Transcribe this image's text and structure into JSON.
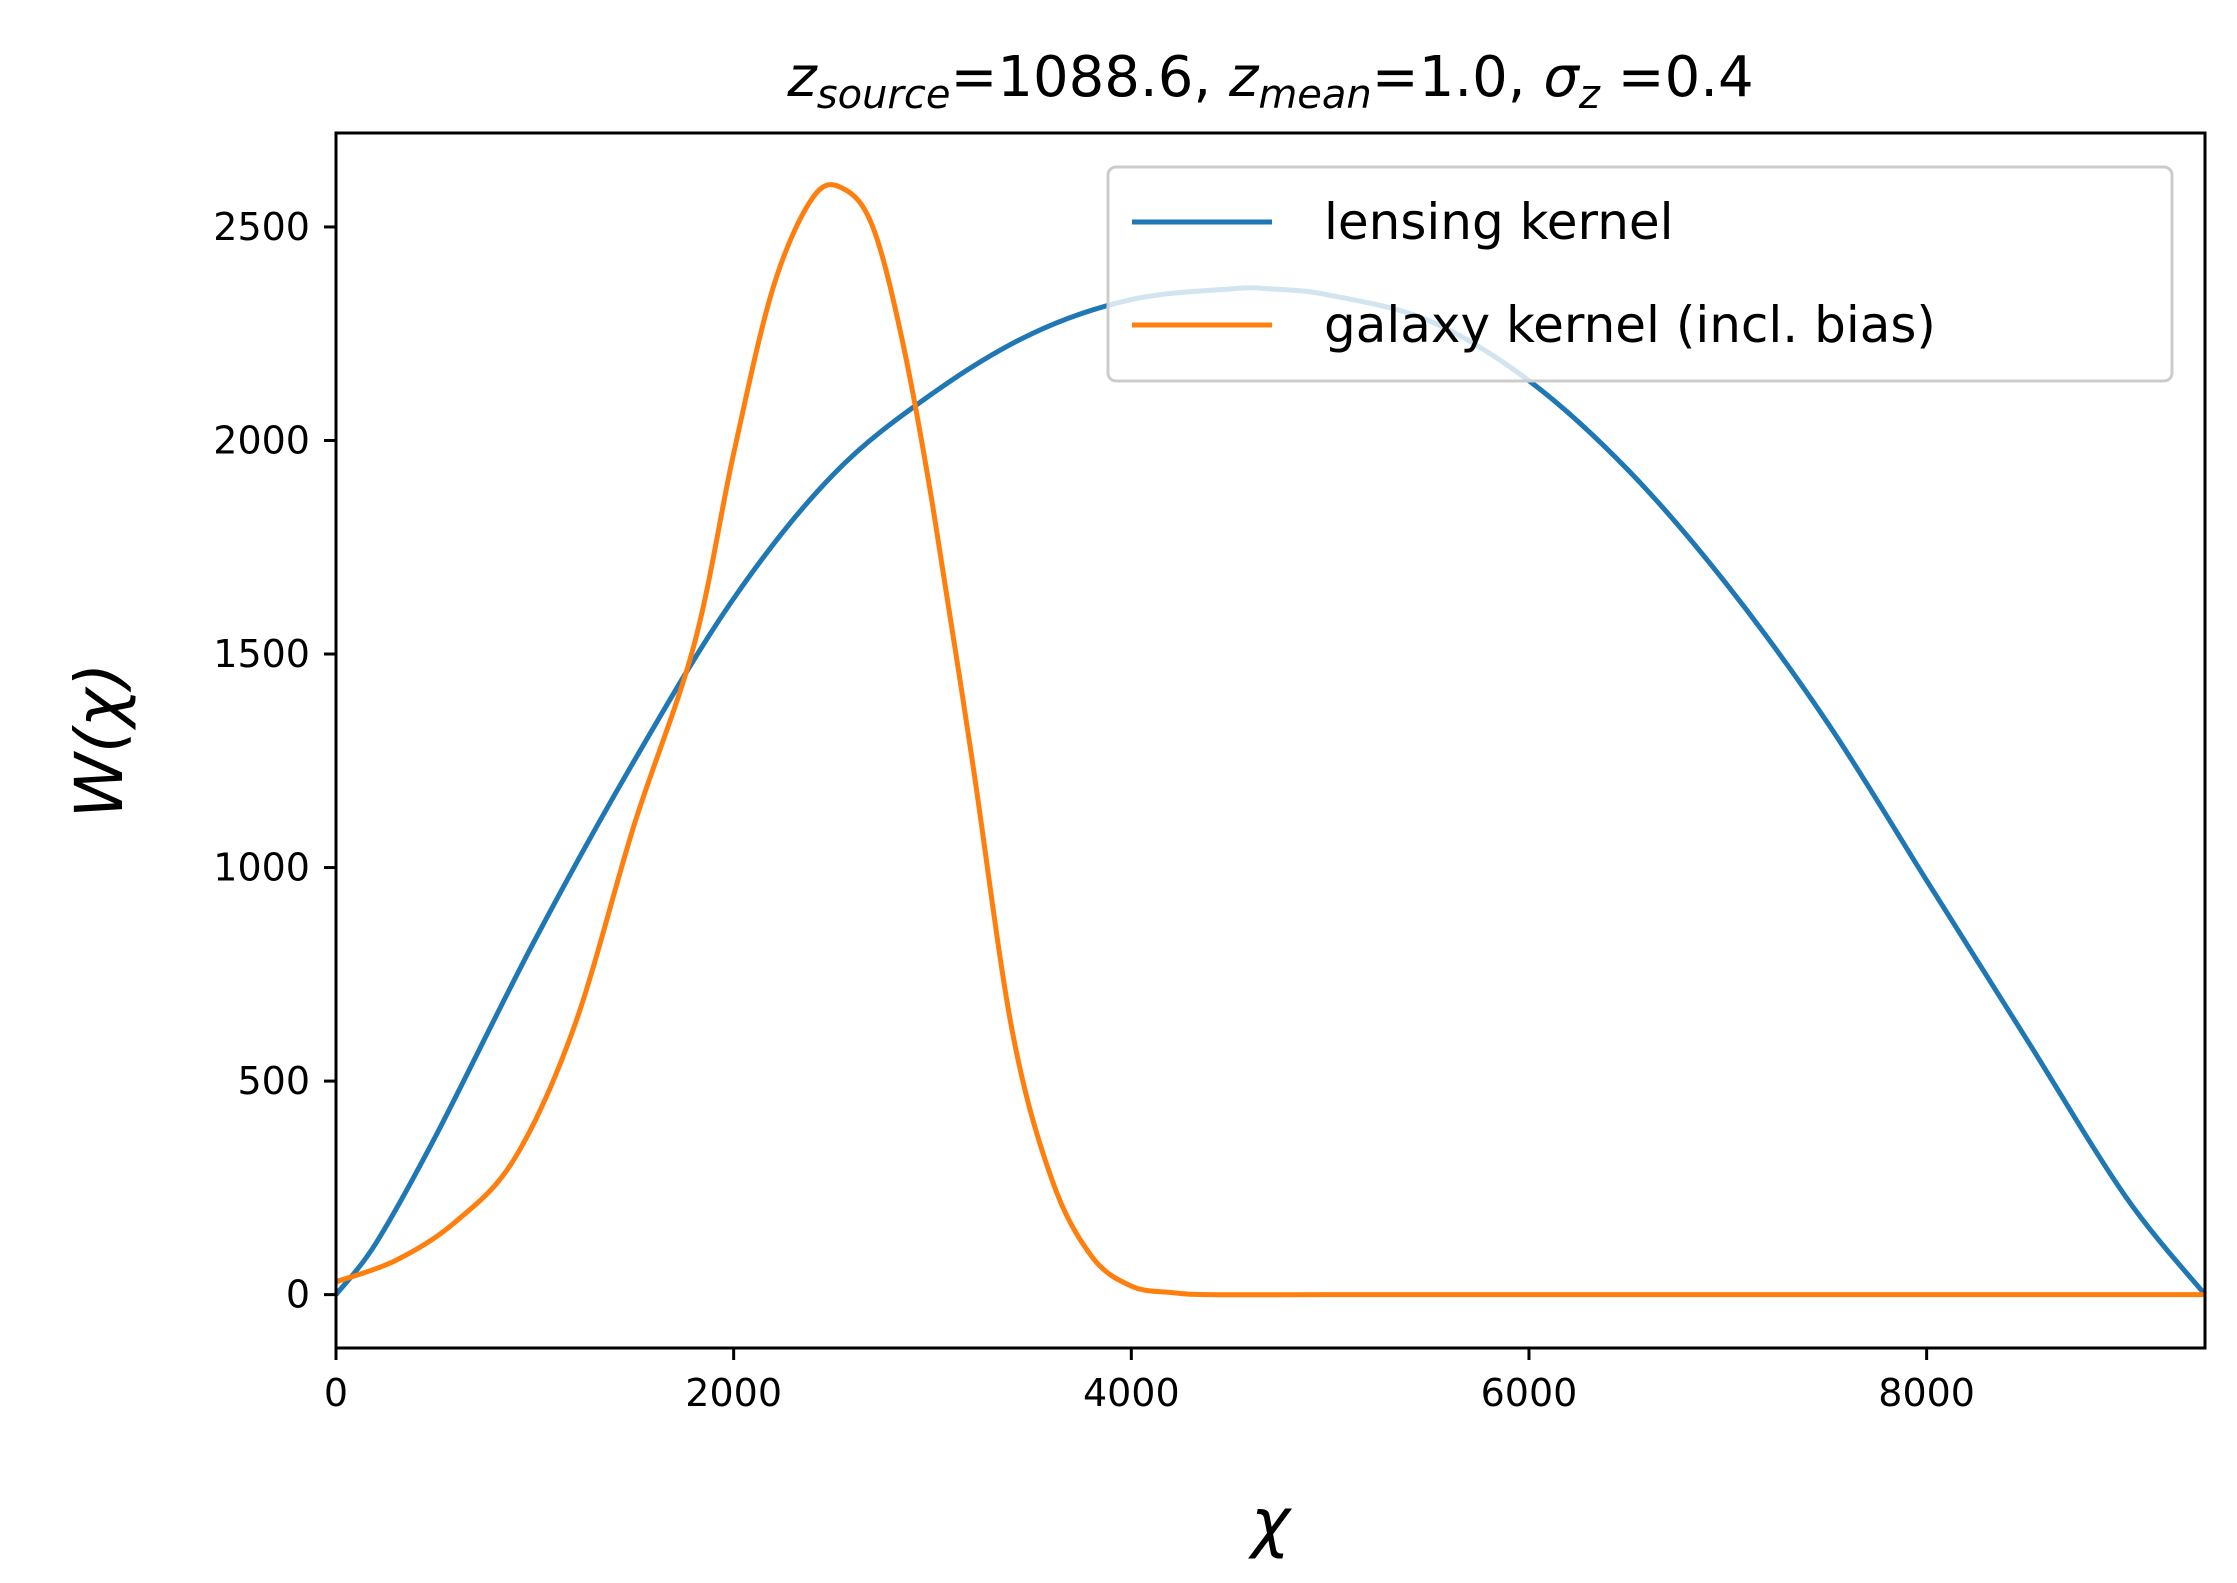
{
  "chart_data": {
    "type": "line",
    "title": {
      "parts": [
        {
          "text": "z",
          "italic": true
        },
        {
          "text": "source",
          "italic": true,
          "sub": true
        },
        {
          "text": "=1088.6, ",
          "italic": false
        },
        {
          "text": "z",
          "italic": true
        },
        {
          "text": "mean",
          "italic": true,
          "sub": true
        },
        {
          "text": "=1.0, ",
          "italic": false
        },
        {
          "text": "σ",
          "italic": true
        },
        {
          "text": "z",
          "italic": true,
          "sub": true
        },
        {
          "text": " =0.4",
          "italic": false
        }
      ]
    },
    "xlabel": "χ",
    "ylabel": "W(χ)",
    "xlim": [
      0,
      9400
    ],
    "ylim": [
      -125,
      2720
    ],
    "xticks": [
      0,
      2000,
      4000,
      6000,
      8000
    ],
    "yticks": [
      0,
      500,
      1000,
      1500,
      2000,
      2500
    ],
    "xtick_labels": [
      "0",
      "2000",
      "4000",
      "6000",
      "8000"
    ],
    "ytick_labels": [
      "0",
      "500",
      "1000",
      "1500",
      "2000",
      "2500"
    ],
    "legend_position": "top-right",
    "grid": false,
    "series": [
      {
        "name": "lensing kernel",
        "color": "#1f77b4",
        "x": [
          0,
          200,
          500,
          1000,
          1500,
          2000,
          2500,
          3000,
          3500,
          4000,
          4500,
          4700,
          5000,
          5500,
          6000,
          6500,
          7000,
          7500,
          8000,
          8500,
          9000,
          9400
        ],
        "y": [
          0,
          120,
          370,
          830,
          1250,
          1630,
          1920,
          2110,
          2250,
          2330,
          2355,
          2355,
          2340,
          2280,
          2140,
          1930,
          1660,
          1340,
          970,
          600,
          230,
          0
        ]
      },
      {
        "name": "galaxy kernel (incl. bias)",
        "color": "#ff7f0e",
        "x": [
          0,
          300,
          600,
          900,
          1200,
          1500,
          1800,
          2000,
          2200,
          2400,
          2550,
          2700,
          2850,
          3000,
          3200,
          3400,
          3600,
          3800,
          4000,
          4200,
          4400,
          5000,
          6000,
          7000,
          8000,
          9400
        ],
        "y": [
          30,
          80,
          170,
          320,
          630,
          1100,
          1520,
          1970,
          2360,
          2570,
          2590,
          2500,
          2230,
          1850,
          1250,
          620,
          270,
          90,
          20,
          5,
          0,
          0,
          0,
          0,
          0,
          0
        ]
      }
    ]
  }
}
